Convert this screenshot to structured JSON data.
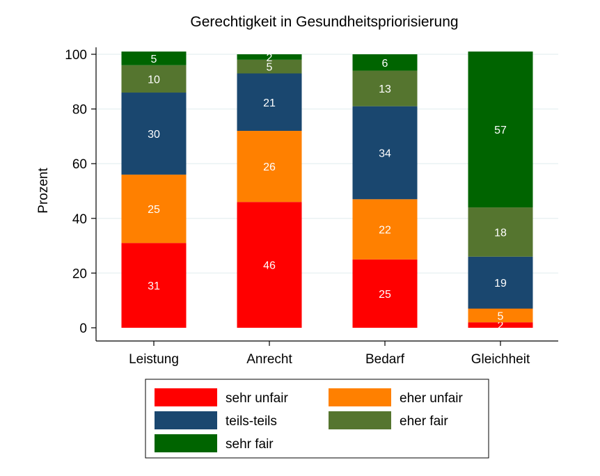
{
  "chart_data": {
    "type": "bar",
    "stacked": true,
    "title": "Gerechtigkeit in Gesundheitspriorisierung",
    "xlabel": "",
    "ylabel": "Prozent",
    "ylim": [
      0,
      100
    ],
    "yticks": [
      "0",
      "20",
      "40",
      "60",
      "80",
      "100"
    ],
    "grid": true,
    "legend_position": "bottom",
    "categories": [
      "Leistung",
      "Anrecht",
      "Bedarf",
      "Gleichheit"
    ],
    "series": [
      {
        "name": "sehr unfair",
        "color": "#ff0000",
        "values": [
          31,
          46,
          25,
          2
        ]
      },
      {
        "name": "eher unfair",
        "color": "#ff8000",
        "values": [
          25,
          26,
          22,
          5
        ]
      },
      {
        "name": "teils-teils",
        "color": "#1a476f",
        "values": [
          30,
          21,
          34,
          19
        ]
      },
      {
        "name": "eher fair",
        "color": "#55752f",
        "values": [
          10,
          5,
          13,
          18
        ]
      },
      {
        "name": "sehr fair",
        "color": "#006400",
        "values": [
          5,
          2,
          6,
          57
        ]
      }
    ]
  }
}
